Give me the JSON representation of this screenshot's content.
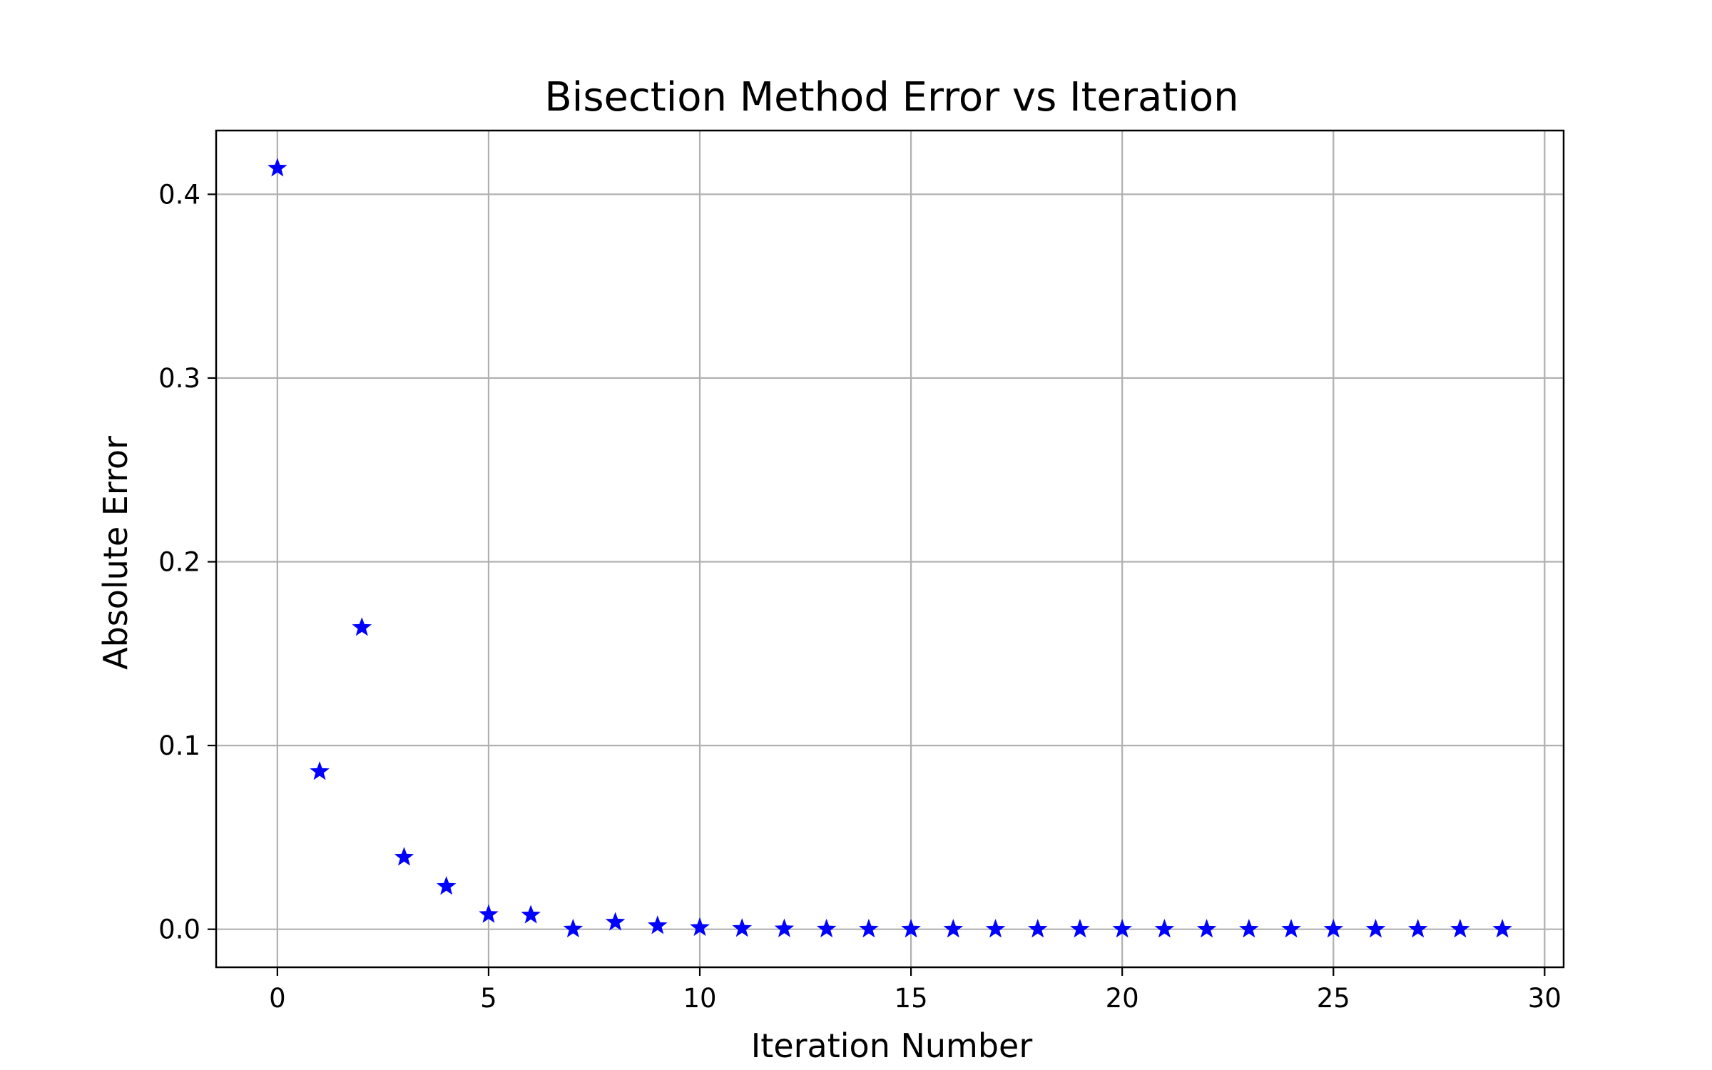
{
  "chart_data": {
    "type": "scatter",
    "title": "Bisection Method Error vs Iteration",
    "xlabel": "Iteration Number",
    "ylabel": "Absolute Error",
    "xlim": [
      -1.45,
      30.45
    ],
    "ylim": [
      -0.0207,
      0.4347
    ],
    "xticks": [
      0,
      5,
      10,
      15,
      20,
      25,
      30
    ],
    "yticks": [
      0.0,
      0.1,
      0.2,
      0.3,
      0.4
    ],
    "xtick_labels": [
      "0",
      "5",
      "10",
      "15",
      "20",
      "25",
      "30"
    ],
    "ytick_labels": [
      "0.0",
      "0.1",
      "0.2",
      "0.3",
      "0.4"
    ],
    "grid": true,
    "marker": "star",
    "series": [
      {
        "color": "#0000ff",
        "x": [
          0,
          1,
          2,
          3,
          4,
          5,
          6,
          7,
          8,
          9,
          10,
          11,
          12,
          13,
          14,
          15,
          16,
          17,
          18,
          19,
          20,
          21,
          22,
          23,
          24,
          25,
          26,
          27,
          28,
          29
        ],
        "values": [
          0.4142,
          0.0858,
          0.1642,
          0.0392,
          0.0233,
          0.008,
          0.0077,
          0.0001,
          0.0038,
          0.0019,
          0.0009,
          0.0004,
          0.0002,
          0.0001,
          5e-05,
          2e-05,
          1e-05,
          0.0,
          0.0,
          0.0,
          0.0,
          0.0,
          0.0,
          0.0,
          0.0,
          0.0,
          0.0,
          0.0,
          0.0,
          0.0
        ]
      }
    ]
  }
}
